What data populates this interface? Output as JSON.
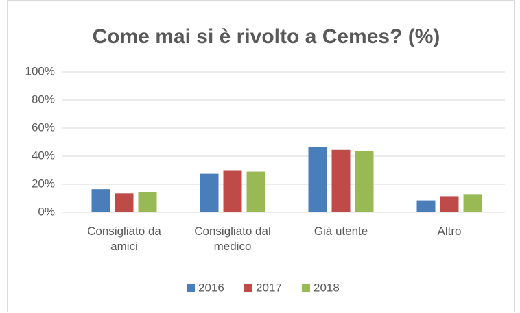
{
  "chart_data": {
    "type": "bar",
    "title": "Come mai si è rivolto a Cemes? (%)",
    "categories": [
      "Consigliato da amici",
      "Consigliato dal medico",
      "Già utente",
      "Altro"
    ],
    "series": [
      {
        "name": "2016",
        "color": "#4a7ebb",
        "values": [
          16.5,
          27.5,
          46.5,
          8.5
        ]
      },
      {
        "name": "2017",
        "color": "#be4b48",
        "values": [
          13.5,
          30,
          44.5,
          11.5
        ]
      },
      {
        "name": "2018",
        "color": "#98b954",
        "values": [
          14.5,
          29,
          43.5,
          13
        ]
      }
    ],
    "ylim": [
      0,
      100
    ],
    "yticks": [
      {
        "value": 0,
        "label": "0%"
      },
      {
        "value": 20,
        "label": "20%"
      },
      {
        "value": 40,
        "label": "40%"
      },
      {
        "value": 60,
        "label": "60%"
      },
      {
        "value": 80,
        "label": "80%"
      },
      {
        "value": 100,
        "label": "100%"
      }
    ],
    "grid": true,
    "legend": "bottom"
  }
}
